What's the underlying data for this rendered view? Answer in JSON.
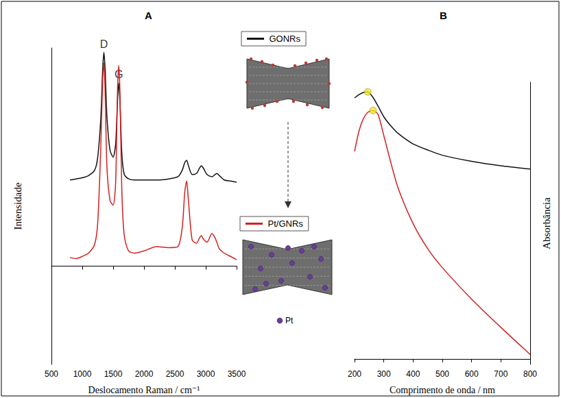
{
  "chart_data": [
    {
      "type": "line",
      "title": "A",
      "x_label": "Deslocamento Raman / cm⁻¹",
      "y_label": "Intensidade",
      "x": [
        800,
        900,
        1000,
        1100,
        1200,
        1250,
        1300,
        1330,
        1350,
        1370,
        1400,
        1450,
        1500,
        1540,
        1570,
        1590,
        1610,
        1640,
        1680,
        1750,
        1850,
        2000,
        2200,
        2400,
        2550,
        2620,
        2660,
        2690,
        2720,
        2780,
        2850,
        2900,
        2930,
        2960,
        3020,
        3100,
        3150,
        3180,
        3220,
        3300,
        3400,
        3500
      ],
      "series": [
        {
          "name": "GONRs",
          "color": "#111111",
          "values": [
            39.5,
            40,
            40.5,
            41.5,
            44,
            50,
            68,
            90,
            98,
            90,
            68,
            53,
            50,
            56,
            75,
            84,
            76,
            52,
            42,
            40,
            39.5,
            39.5,
            39.5,
            40,
            41,
            44,
            47.5,
            48.5,
            46,
            42,
            42.5,
            45,
            46,
            45,
            42,
            41,
            42,
            42.5,
            41.5,
            39.5,
            39,
            38.5
          ]
        },
        {
          "name": "Pt/GNRs",
          "color": "#d42020",
          "values": [
            4,
            3.5,
            4.5,
            6,
            10,
            20,
            55,
            85,
            93,
            80,
            45,
            30,
            28,
            38,
            80,
            92,
            80,
            35,
            14,
            7,
            6,
            7,
            9,
            8.5,
            9,
            18,
            34,
            39,
            30,
            12,
            10.5,
            13,
            14,
            12.5,
            11,
            15,
            13,
            11,
            8,
            6,
            4.5,
            3
          ]
        }
      ],
      "annotations": [
        {
          "text": "D",
          "x": 1350,
          "y": 98
        },
        {
          "text": "G",
          "x": 1590,
          "y": 84
        }
      ],
      "xlim": [
        500,
        3500
      ],
      "xticks": [
        500,
        1000,
        1500,
        2000,
        2500,
        3000,
        3500
      ],
      "ylim": [
        -45,
        100
      ],
      "tick_labels": "x",
      "grid": false,
      "legend": "center"
    },
    {
      "type": "line",
      "title": "B",
      "x_label": "Comprimento de onda / nm",
      "y_label": "Absorbância",
      "x": [
        200,
        215,
        230,
        245,
        263,
        280,
        300,
        325,
        350,
        400,
        450,
        500,
        600,
        700,
        800
      ],
      "series": [
        {
          "name": "GONRs",
          "color": "#111111",
          "values": [
            94.3,
            95.5,
            96.3,
            96.5,
            94.5,
            91.4,
            87.5,
            84.1,
            81.4,
            77.7,
            75.5,
            73.6,
            71.4,
            69.8,
            68.6
          ]
        },
        {
          "name": "Pt/GNRs",
          "color": "#d42020",
          "values": [
            75,
            82.3,
            86.8,
            89.1,
            89.8,
            88.4,
            80.7,
            70.5,
            61.4,
            48.9,
            39.8,
            33,
            21.6,
            11.4,
            1.6
          ]
        }
      ],
      "annotations": [
        {
          "x": 245,
          "y": 96.5,
          "marker": "circle",
          "color": "#f5e61c"
        },
        {
          "x": 263,
          "y": 89.8,
          "marker": "circle",
          "color": "#f5e61c"
        }
      ],
      "xlim": [
        200,
        800
      ],
      "xticks": [
        200,
        300,
        400,
        500,
        600,
        700,
        800
      ],
      "ylim": [
        -2,
        100
      ],
      "tick_labels": "x",
      "grid": false
    }
  ],
  "diagram": {
    "key_label": "Pt",
    "key_color": "#6a3d9a"
  }
}
